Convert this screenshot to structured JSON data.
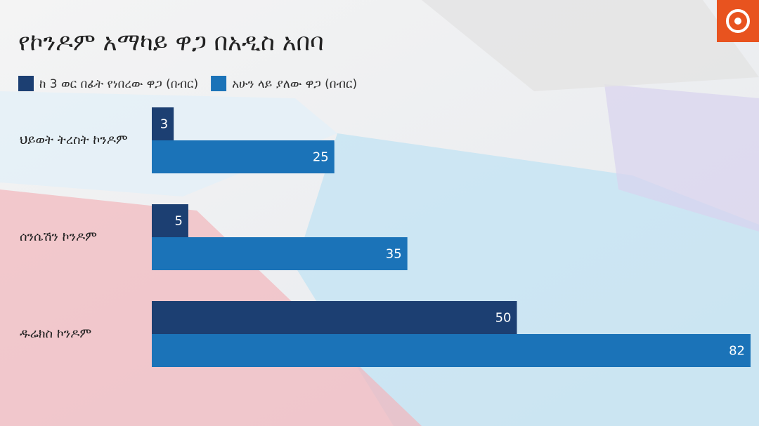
{
  "chart_data": {
    "type": "bar",
    "orientation": "horizontal",
    "title": "የኮንዶም አማካይ ዋጋ በአዲስ አበባ",
    "categories": [
      "ህይወት ትረስት ኮንዶም",
      "ሰንሴሽን ኮንዶም",
      "ዱሬክስ ኮንዶም"
    ],
    "series": [
      {
        "name": "ከ 3 ወር በፊት የነበረው ዋጋ (በብር)",
        "color": "#1c3f72",
        "values": [
          3,
          5,
          50
        ]
      },
      {
        "name": "አሁን ላይ ያለው ዋጋ (በብር)",
        "color": "#1b73b8",
        "values": [
          25,
          35,
          82
        ]
      }
    ],
    "data_labels": true
  }
}
